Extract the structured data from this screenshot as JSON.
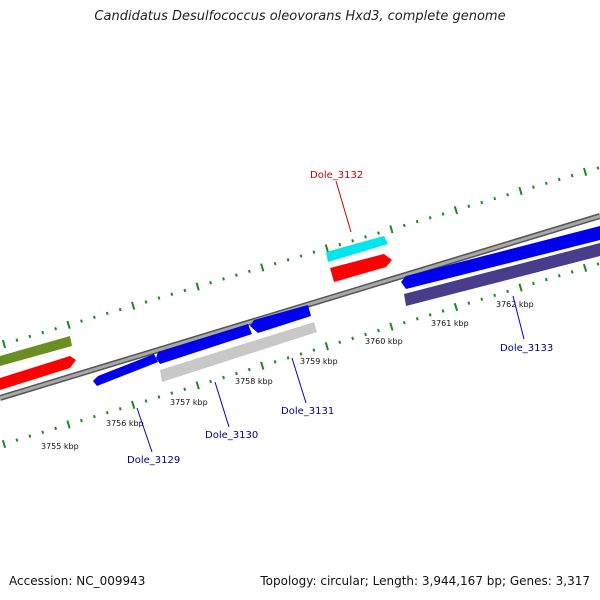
{
  "title": "Candidatus Desulfococcus oleovorans Hxd3, complete genome",
  "accession": "Accession: NC_009943",
  "topology": "Topology: circular; Length: 3,944,167 bp; Genes: 3,317",
  "colors": {
    "backbone": "#808080",
    "tick": "#1a8a1a",
    "blue": "#0000ee",
    "red": "#ff0000",
    "cyan": "#00e5ee",
    "olive": "#6b8e23",
    "silver": "#c8c8c8",
    "navy": "#483d8b",
    "label_red": "#cc0000",
    "label_blue": "#00008b"
  },
  "ticks": [
    {
      "label": "3755 kbp"
    },
    {
      "label": "3756 kbp"
    },
    {
      "label": "3757 kbp"
    },
    {
      "label": "3758 kbp"
    },
    {
      "label": "3759 kbp"
    },
    {
      "label": "3760 kbp"
    },
    {
      "label": "3761 kbp"
    },
    {
      "label": "3762 kbp"
    }
  ],
  "genes": [
    {
      "label": "Dole_3129"
    },
    {
      "label": "Dole_3130"
    },
    {
      "label": "Dole_3131"
    },
    {
      "label": "Dole_3132"
    },
    {
      "label": "Dole_3133"
    }
  ]
}
